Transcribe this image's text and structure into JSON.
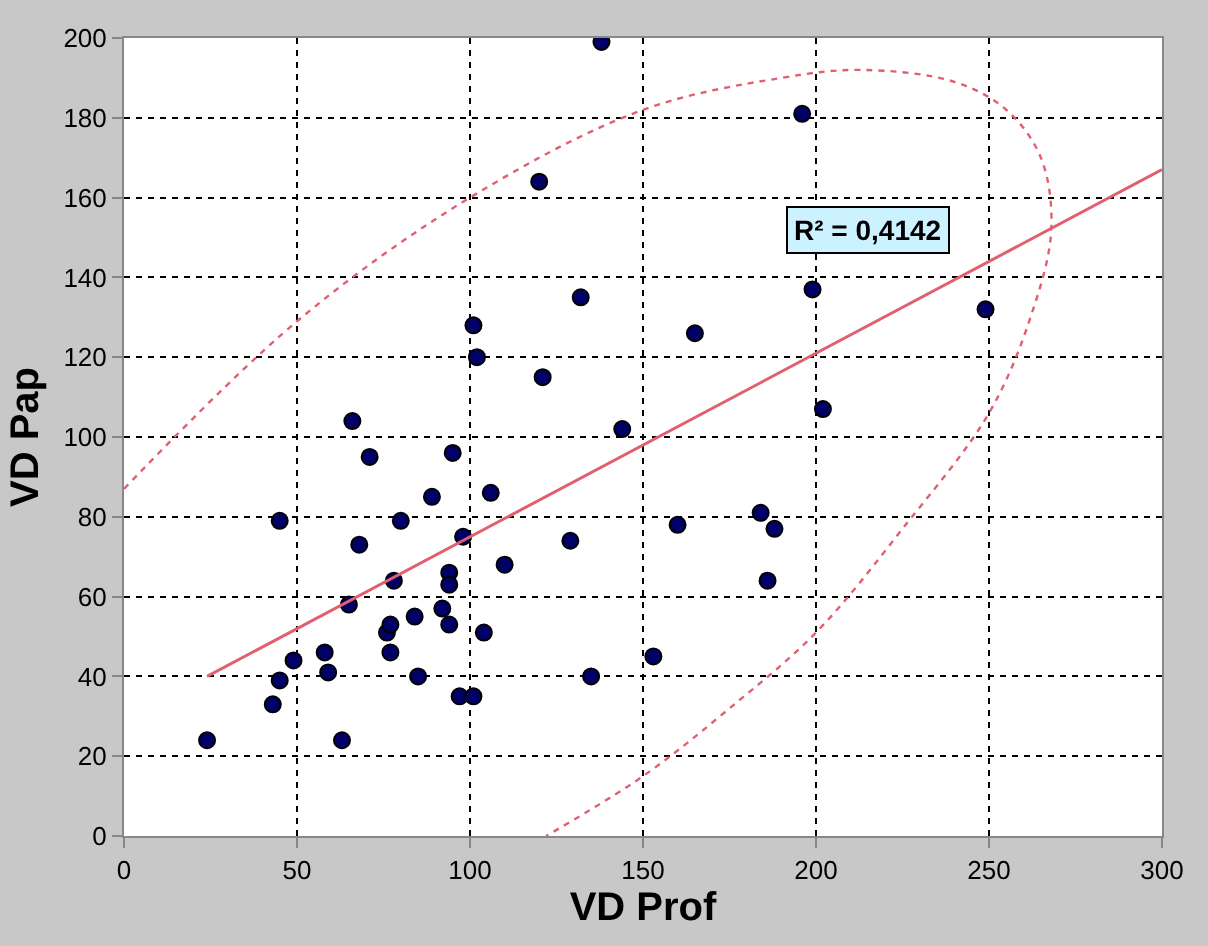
{
  "chart_data": {
    "type": "scatter",
    "xlabel": "VD Prof",
    "ylabel": "VD Pap",
    "xlim": [
      0,
      300
    ],
    "ylim": [
      0,
      200
    ],
    "xticks": [
      0,
      50,
      100,
      150,
      200,
      250,
      300
    ],
    "yticks": [
      0,
      20,
      40,
      60,
      80,
      100,
      120,
      140,
      160,
      180,
      200
    ],
    "grid": true,
    "legend": false,
    "annotations": [
      "R² = 0,4142"
    ],
    "series": [
      {
        "marker": "circle",
        "color": "#000066",
        "x": [
          24,
          43,
          45,
          45,
          49,
          58,
          59,
          63,
          65,
          66,
          68,
          71,
          76,
          77,
          77,
          78,
          80,
          84,
          85,
          89,
          92,
          94,
          94,
          94,
          95,
          97,
          98,
          101,
          102,
          101,
          104,
          106,
          110,
          120,
          121,
          129,
          132,
          135,
          138,
          144,
          153,
          160,
          165,
          184,
          186,
          188,
          196,
          199,
          202,
          249
        ],
        "values": [
          24,
          33,
          39,
          79,
          44,
          46,
          41,
          24,
          58,
          104,
          73,
          95,
          51,
          46,
          53,
          64,
          79,
          55,
          40,
          85,
          57,
          53,
          66,
          63,
          96,
          35,
          75,
          35,
          120,
          128,
          51,
          86,
          68,
          164,
          115,
          74,
          135,
          40,
          199,
          102,
          45,
          78,
          126,
          81,
          64,
          77,
          181,
          137,
          107,
          132
        ]
      },
      {
        "type": "line",
        "color": "#e06070",
        "line_style": "solid",
        "x": [
          24,
          300
        ],
        "values": [
          40,
          167
        ]
      },
      {
        "type": "line",
        "color": "#e06070",
        "line_style": "dotted",
        "x": [
          0,
          50,
          100,
          150,
          190,
          213,
          240,
          255,
          265,
          268,
          262,
          250,
          225,
          200,
          175,
          150,
          122
        ],
        "values": [
          87,
          129,
          160,
          182,
          190,
          192,
          189,
          182,
          170,
          152,
          130,
          106,
          77,
          51,
          32,
          15,
          0
        ]
      }
    ]
  }
}
